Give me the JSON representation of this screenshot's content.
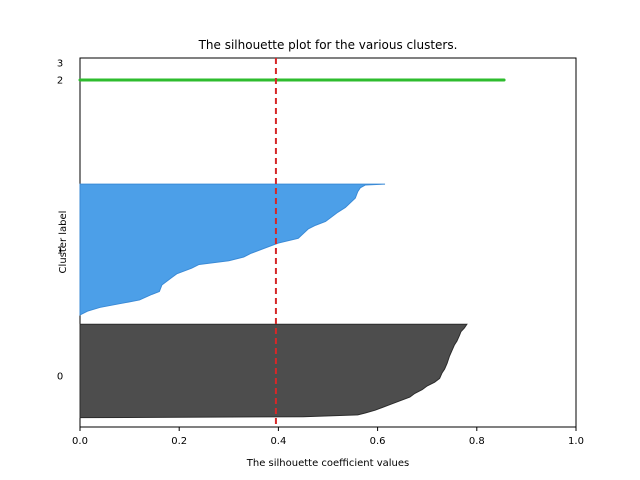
{
  "chart_data": {
    "type": "area",
    "title": "The silhouette plot for the various clusters.",
    "xlabel": "The silhouette coefficient values",
    "ylabel": "Cluster label",
    "xlim": [
      0.0,
      1.0
    ],
    "xticks": [
      {
        "value": 0.0,
        "label": "0.0"
      },
      {
        "value": 0.2,
        "label": "0.2"
      },
      {
        "value": 0.4,
        "label": "0.4"
      },
      {
        "value": 0.6,
        "label": "0.6"
      },
      {
        "value": 0.8,
        "label": "0.8"
      },
      {
        "value": 1.0,
        "label": "1.0"
      }
    ],
    "ylim": [
      -10,
      385
    ],
    "clusters": [
      {
        "label": "0",
        "color": "#4d4d4d",
        "edge_color": "#2b2b2b",
        "samples": 100,
        "label_y": 45,
        "profile": [
          [
            0,
            0.78
          ],
          [
            4,
            0.775
          ],
          [
            8,
            0.768
          ],
          [
            12,
            0.765
          ],
          [
            18,
            0.76
          ],
          [
            22,
            0.755
          ],
          [
            28,
            0.75
          ],
          [
            34,
            0.745
          ],
          [
            42,
            0.74
          ],
          [
            48,
            0.735
          ],
          [
            52,
            0.73
          ],
          [
            58,
            0.725
          ],
          [
            62,
            0.715
          ],
          [
            66,
            0.7
          ],
          [
            70,
            0.69
          ],
          [
            74,
            0.675
          ],
          [
            78,
            0.665
          ],
          [
            82,
            0.645
          ],
          [
            86,
            0.625
          ],
          [
            89,
            0.61
          ],
          [
            92,
            0.595
          ],
          [
            95,
            0.575
          ],
          [
            97,
            0.56
          ],
          [
            99,
            0.45
          ],
          [
            100,
            0.0
          ]
        ]
      },
      {
        "label": "1",
        "color": "#4c9fe8",
        "edge_color": "#3a8ad6",
        "samples": 140,
        "label_y": 180,
        "profile": [
          [
            0,
            0.615
          ],
          [
            1,
            0.575
          ],
          [
            4,
            0.565
          ],
          [
            8,
            0.56
          ],
          [
            15,
            0.555
          ],
          [
            20,
            0.545
          ],
          [
            25,
            0.535
          ],
          [
            30,
            0.52
          ],
          [
            36,
            0.505
          ],
          [
            40,
            0.495
          ],
          [
            44,
            0.475
          ],
          [
            48,
            0.46
          ],
          [
            53,
            0.45
          ],
          [
            58,
            0.44
          ],
          [
            63,
            0.4
          ],
          [
            68,
            0.375
          ],
          [
            74,
            0.345
          ],
          [
            78,
            0.33
          ],
          [
            82,
            0.3
          ],
          [
            86,
            0.24
          ],
          [
            90,
            0.225
          ],
          [
            96,
            0.195
          ],
          [
            100,
            0.185
          ],
          [
            104,
            0.175
          ],
          [
            108,
            0.165
          ],
          [
            115,
            0.16
          ],
          [
            118,
            0.145
          ],
          [
            124,
            0.12
          ],
          [
            128,
            0.08
          ],
          [
            132,
            0.04
          ],
          [
            136,
            0.015
          ],
          [
            140,
            0.0
          ]
        ]
      },
      {
        "label": "2",
        "color": "#2ebc2e",
        "edge_color": "#2ebc2e",
        "samples": 1,
        "label_y": 362,
        "profile": [
          [
            0,
            0.855
          ],
          [
            1,
            0.855
          ]
        ]
      },
      {
        "label": "3",
        "color": "#ffffff",
        "edge_color": "#ffffff",
        "samples": 0,
        "label_y": 380,
        "profile": []
      }
    ],
    "average_line": {
      "x": 0.395,
      "color": "#d62728",
      "style": "dashed"
    },
    "cluster_starts": [
      0,
      110,
      361,
      372
    ],
    "grid": false,
    "legend": "none"
  }
}
